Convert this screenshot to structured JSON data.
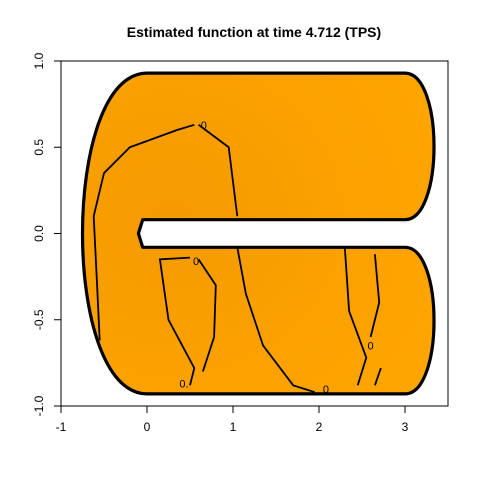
{
  "chart_data": {
    "type": "contour",
    "title": "Estimated function at time 4.712 (TPS)",
    "xlabel": "",
    "ylabel": "",
    "xlim": [
      -1,
      3.5
    ],
    "ylim": [
      -1,
      1
    ],
    "x_ticks": [
      -1,
      0,
      1,
      2,
      3
    ],
    "y_ticks": [
      -1.0,
      -0.5,
      0.0,
      0.5,
      1.0
    ],
    "x_tick_labels": [
      "-1",
      "0",
      "1",
      "2",
      "3"
    ],
    "y_tick_labels": [
      "-1.0",
      "-0.5",
      "0.0",
      "0.5",
      "1.0"
    ],
    "domain_shape": "horseshoe",
    "fill_color": "#FFA500",
    "fill_color_dark": "#F59A00",
    "contour_level": 0,
    "contour_labels": [
      "0",
      "0",
      "0.",
      "0",
      "0"
    ],
    "grid": false
  }
}
